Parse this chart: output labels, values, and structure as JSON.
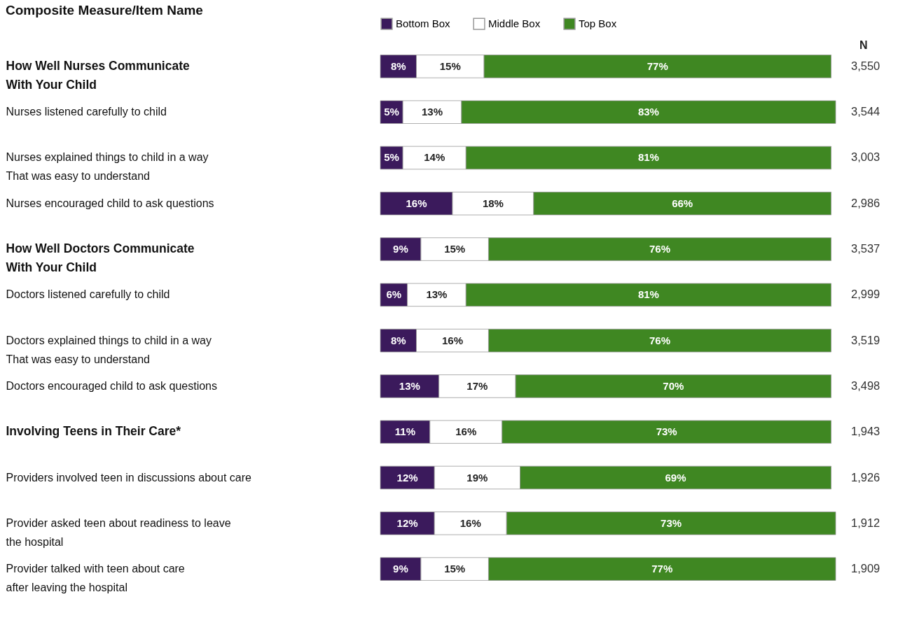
{
  "chart_data": {
    "type": "bar",
    "orientation": "horizontal",
    "stacked": true,
    "legend": "top",
    "tick_labels": "y",
    "title": "Composite Measure/Item Name",
    "categories": [
      "How Well Nurses Communicate\nWith Your Child",
      "Nurses listened carefully to child",
      "Nurses explained things to child in a way\nThat was easy to understand",
      "Nurses encouraged child to ask questions",
      "How Well Doctors Communicate\nWith Your Child",
      "Doctors listened carefully to child",
      "Doctors explained things to child in a way\nThat was easy to understand",
      "Doctors encouraged child to ask questions",
      "Involving Teens in Their Care*",
      "Providers involved teen in discussions about care",
      "Provider asked teen about readiness to leave\nthe hospital",
      "Provider talked with teen about care\nafter leaving the hospital"
    ],
    "series": [
      {
        "name": "Bottom Box",
        "color": "#3b1a5c",
        "values": [
          8,
          5,
          5,
          16,
          9,
          6,
          8,
          13,
          11,
          12,
          12,
          9
        ],
        "value_labels": [
          "8%",
          "5%",
          "5%",
          "16%",
          "9%",
          "6%",
          "8%",
          "13%",
          "11%",
          "12%",
          "12%",
          "9%"
        ]
      },
      {
        "name": "Middle Box",
        "color": "#ffffff",
        "values": [
          15,
          13,
          14,
          18,
          15,
          13,
          16,
          17,
          16,
          19,
          16,
          15
        ],
        "value_labels": [
          "15%",
          "13%",
          "14%",
          "18%",
          "15%",
          "13%",
          "16%",
          "17%",
          "16%",
          "19%",
          "16%",
          "15%"
        ]
      },
      {
        "name": "Top Box",
        "color": "#3f8722",
        "values": [
          77,
          83,
          81,
          66,
          76,
          81,
          76,
          70,
          73,
          69,
          73,
          77
        ],
        "value_labels": [
          "77%",
          "83%",
          "81%",
          "66%",
          "76%",
          "81%",
          "76%",
          "70%",
          "73%",
          "69%",
          "73%",
          "77%"
        ]
      }
    ],
    "annotations": [
      "N",
      "3,550",
      "3,544",
      "3,003",
      "2,986",
      "3,537",
      "2,999",
      "3,519",
      "3,498",
      "1,943",
      "1,926",
      "1,912",
      "1,909"
    ]
  }
}
